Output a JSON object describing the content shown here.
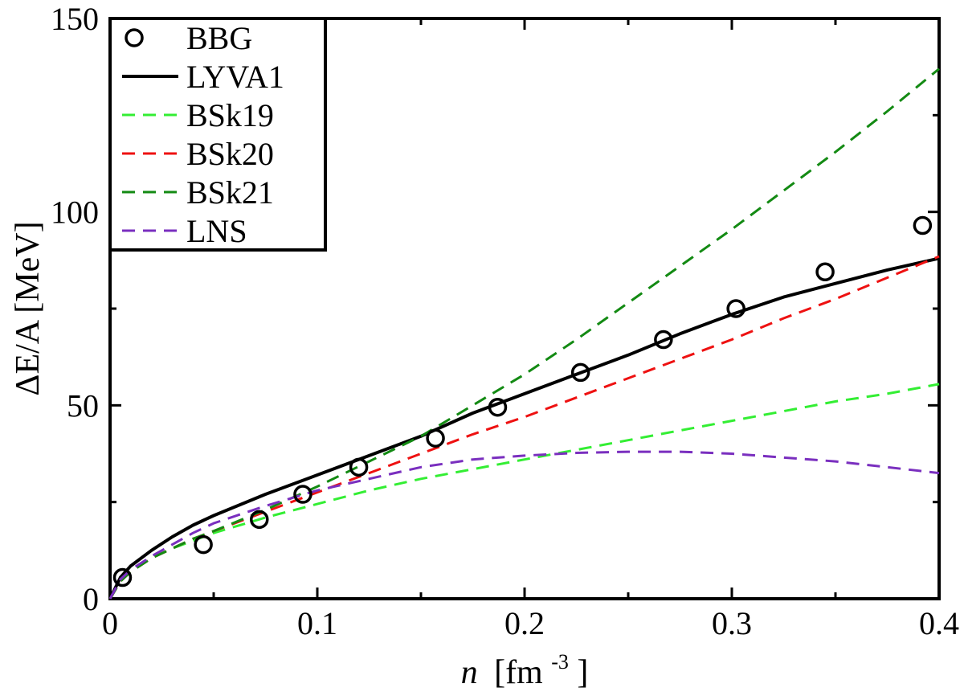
{
  "chart_data": {
    "type": "line",
    "xlabel": "n [fm^-3]",
    "xlabel_var": "n",
    "xlabel_unit": "[fm",
    "xlabel_exp": "-3",
    "xlabel_close": "]",
    "ylabel": "ΔE/A [MeV]",
    "xlim": [
      0,
      0.4
    ],
    "ylim": [
      0,
      150
    ],
    "xticks": [
      0,
      0.1,
      0.2,
      0.3,
      0.4
    ],
    "xtick_labels": [
      "0",
      "0.1",
      "0.2",
      "0.3",
      "0.4"
    ],
    "yticks": [
      0,
      50,
      100,
      150
    ],
    "ytick_labels": [
      "0",
      "50",
      "100",
      "150"
    ],
    "x_minor_step": 0.05,
    "y_minor_step": 25,
    "grid": false,
    "legend_position": "top-left",
    "series": [
      {
        "name": "BBG",
        "kind": "markers",
        "color": "#000000",
        "x": [
          0.006,
          0.045,
          0.072,
          0.093,
          0.12,
          0.157,
          0.187,
          0.227,
          0.267,
          0.302,
          0.345,
          0.392
        ],
        "y": [
          5.5,
          14.0,
          20.5,
          27.0,
          34.0,
          41.5,
          49.5,
          58.5,
          67.0,
          75.0,
          84.5,
          96.5
        ]
      },
      {
        "name": "LYVA1",
        "kind": "line",
        "dash": "solid",
        "color": "#000000",
        "x": [
          0,
          0.005,
          0.01,
          0.02,
          0.03,
          0.04,
          0.05,
          0.075,
          0.1,
          0.125,
          0.15,
          0.175,
          0.2,
          0.225,
          0.25,
          0.275,
          0.3,
          0.325,
          0.35,
          0.375,
          0.4
        ],
        "y": [
          0,
          5.5,
          8.5,
          12.5,
          16.0,
          19.0,
          21.5,
          27.0,
          32.0,
          37.0,
          42.0,
          48.0,
          53.0,
          58.0,
          63.0,
          68.5,
          73.5,
          78.0,
          81.5,
          85.0,
          88.0
        ]
      },
      {
        "name": "BSk19",
        "kind": "line",
        "dash": "dashed",
        "color": "#33ee33",
        "x": [
          0,
          0.005,
          0.01,
          0.02,
          0.03,
          0.04,
          0.05,
          0.075,
          0.1,
          0.125,
          0.15,
          0.175,
          0.2,
          0.225,
          0.25,
          0.275,
          0.3,
          0.325,
          0.35,
          0.375,
          0.4
        ],
        "y": [
          0,
          4.5,
          7.0,
          10.5,
          13.0,
          15.0,
          17.0,
          21.0,
          24.5,
          28.0,
          31.0,
          33.5,
          36.0,
          38.5,
          41.0,
          43.5,
          46.0,
          48.5,
          51.0,
          53.0,
          55.5
        ]
      },
      {
        "name": "BSk20",
        "kind": "line",
        "dash": "dashed",
        "color": "#ee1111",
        "x": [
          0,
          0.005,
          0.01,
          0.02,
          0.03,
          0.04,
          0.05,
          0.075,
          0.1,
          0.125,
          0.15,
          0.175,
          0.2,
          0.225,
          0.25,
          0.275,
          0.3,
          0.325,
          0.35,
          0.375,
          0.4
        ],
        "y": [
          0,
          4.5,
          7.0,
          10.5,
          13.0,
          15.5,
          17.5,
          22.5,
          27.5,
          32.5,
          37.5,
          42.5,
          47.0,
          52.0,
          57.0,
          62.0,
          67.0,
          72.5,
          77.5,
          83.0,
          88.5
        ]
      },
      {
        "name": "BSk21",
        "kind": "line",
        "dash": "dashed",
        "color": "#138a13",
        "x": [
          0,
          0.005,
          0.01,
          0.02,
          0.03,
          0.04,
          0.05,
          0.075,
          0.1,
          0.125,
          0.15,
          0.175,
          0.2,
          0.225,
          0.25,
          0.275,
          0.3,
          0.325,
          0.35,
          0.375,
          0.4
        ],
        "y": [
          0,
          4.5,
          7.0,
          10.5,
          13.0,
          15.5,
          17.5,
          23.0,
          29.0,
          35.5,
          42.0,
          50.0,
          58.0,
          67.0,
          76.5,
          86.0,
          95.5,
          105.5,
          115.5,
          126.0,
          137.0
        ]
      },
      {
        "name": "LNS",
        "kind": "line",
        "dash": "dashed",
        "color": "#7a2fbf",
        "x": [
          0,
          0.005,
          0.01,
          0.02,
          0.03,
          0.04,
          0.05,
          0.075,
          0.1,
          0.125,
          0.15,
          0.175,
          0.2,
          0.225,
          0.25,
          0.275,
          0.3,
          0.325,
          0.35,
          0.375,
          0.4
        ],
        "y": [
          0,
          5.0,
          7.5,
          11.0,
          14.0,
          17.0,
          19.5,
          24.0,
          28.0,
          31.0,
          34.0,
          36.0,
          37.0,
          37.7,
          38.0,
          38.0,
          37.5,
          36.5,
          35.5,
          34.0,
          32.5
        ]
      }
    ]
  }
}
